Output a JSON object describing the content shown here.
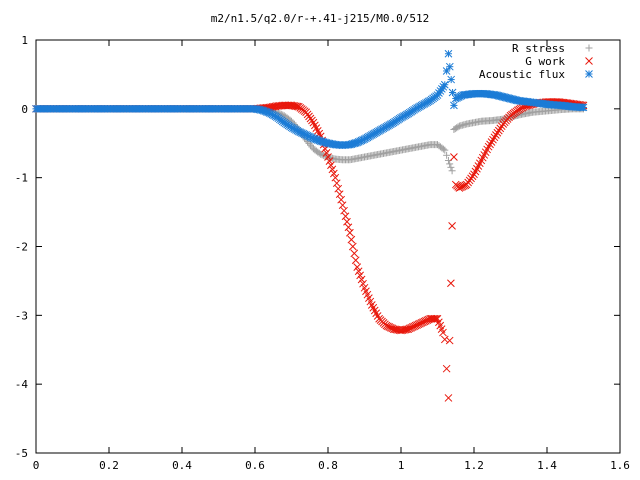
{
  "chart_data": {
    "type": "scatter",
    "title": "m2/n1.5/q2.0/r-+.41-j215/M0.0/512",
    "xlim": [
      0,
      1.6
    ],
    "ylim": [
      -5,
      1
    ],
    "xticks": [
      0,
      0.2,
      0.4,
      0.6,
      0.8,
      1,
      1.2,
      1.4,
      1.6
    ],
    "yticks": [
      -5,
      -4,
      -3,
      -2,
      -1,
      0,
      1
    ],
    "xtick_labels": [
      "0",
      "0.2",
      "0.4",
      "0.6",
      "0.8",
      "1",
      "1.2",
      "1.4",
      "1.6"
    ],
    "ytick_labels": [
      "-5",
      "-4",
      "-3",
      "-2",
      "-1",
      "0",
      "1"
    ],
    "legend_position": "top-right",
    "series": [
      {
        "name": "R stress",
        "marker": "plus",
        "color": "#a0a0a0",
        "points": [
          [
            0.0,
            0.0
          ],
          [
            0.1,
            0.0
          ],
          [
            0.2,
            0.0
          ],
          [
            0.3,
            0.0
          ],
          [
            0.4,
            0.0
          ],
          [
            0.5,
            0.0
          ],
          [
            0.6,
            0.0
          ],
          [
            0.62,
            0.0
          ],
          [
            0.64,
            -0.02
          ],
          [
            0.66,
            -0.05
          ],
          [
            0.68,
            -0.1
          ],
          [
            0.7,
            -0.18
          ],
          [
            0.72,
            -0.3
          ],
          [
            0.74,
            -0.45
          ],
          [
            0.76,
            -0.58
          ],
          [
            0.78,
            -0.66
          ],
          [
            0.8,
            -0.7
          ],
          [
            0.82,
            -0.73
          ],
          [
            0.84,
            -0.74
          ],
          [
            0.86,
            -0.74
          ],
          [
            0.88,
            -0.72
          ],
          [
            0.9,
            -0.7
          ],
          [
            0.92,
            -0.68
          ],
          [
            0.94,
            -0.66
          ],
          [
            0.96,
            -0.64
          ],
          [
            0.98,
            -0.62
          ],
          [
            1.0,
            -0.6
          ],
          [
            1.02,
            -0.58
          ],
          [
            1.04,
            -0.56
          ],
          [
            1.06,
            -0.54
          ],
          [
            1.08,
            -0.52
          ],
          [
            1.1,
            -0.52
          ],
          [
            1.12,
            -0.6
          ],
          [
            1.13,
            -0.75
          ],
          [
            1.14,
            -0.9
          ],
          [
            1.145,
            -0.3
          ],
          [
            1.16,
            -0.25
          ],
          [
            1.18,
            -0.22
          ],
          [
            1.2,
            -0.2
          ],
          [
            1.22,
            -0.18
          ],
          [
            1.25,
            -0.17
          ],
          [
            1.28,
            -0.15
          ],
          [
            1.3,
            -0.12
          ],
          [
            1.33,
            -0.08
          ],
          [
            1.36,
            -0.05
          ],
          [
            1.4,
            -0.03
          ],
          [
            1.44,
            -0.01
          ],
          [
            1.47,
            0.0
          ],
          [
            1.5,
            0.0
          ]
        ]
      },
      {
        "name": "G work",
        "marker": "cross",
        "color": "#e8170b",
        "points": [
          [
            0.0,
            0.0
          ],
          [
            0.1,
            0.0
          ],
          [
            0.2,
            0.0
          ],
          [
            0.3,
            0.0
          ],
          [
            0.4,
            0.0
          ],
          [
            0.5,
            0.0
          ],
          [
            0.6,
            0.0
          ],
          [
            0.62,
            0.01
          ],
          [
            0.64,
            0.02
          ],
          [
            0.66,
            0.04
          ],
          [
            0.68,
            0.05
          ],
          [
            0.7,
            0.05
          ],
          [
            0.72,
            0.03
          ],
          [
            0.74,
            -0.05
          ],
          [
            0.76,
            -0.2
          ],
          [
            0.78,
            -0.4
          ],
          [
            0.8,
            -0.7
          ],
          [
            0.82,
            -1.0
          ],
          [
            0.84,
            -1.4
          ],
          [
            0.86,
            -1.8
          ],
          [
            0.88,
            -2.3
          ],
          [
            0.9,
            -2.6
          ],
          [
            0.92,
            -2.85
          ],
          [
            0.94,
            -3.05
          ],
          [
            0.96,
            -3.15
          ],
          [
            0.98,
            -3.2
          ],
          [
            1.0,
            -3.22
          ],
          [
            1.02,
            -3.2
          ],
          [
            1.04,
            -3.15
          ],
          [
            1.06,
            -3.1
          ],
          [
            1.08,
            -3.05
          ],
          [
            1.1,
            -3.05
          ],
          [
            1.115,
            -3.25
          ],
          [
            1.12,
            -3.35
          ],
          [
            1.13,
            -4.2
          ],
          [
            1.14,
            -1.7
          ],
          [
            1.145,
            -0.7
          ],
          [
            1.15,
            -1.1
          ],
          [
            1.16,
            -1.15
          ],
          [
            1.18,
            -1.1
          ],
          [
            1.2,
            -0.95
          ],
          [
            1.22,
            -0.75
          ],
          [
            1.24,
            -0.55
          ],
          [
            1.26,
            -0.38
          ],
          [
            1.28,
            -0.22
          ],
          [
            1.3,
            -0.1
          ],
          [
            1.32,
            -0.02
          ],
          [
            1.34,
            0.04
          ],
          [
            1.37,
            0.08
          ],
          [
            1.4,
            0.1
          ],
          [
            1.43,
            0.1
          ],
          [
            1.46,
            0.08
          ],
          [
            1.5,
            0.05
          ]
        ]
      },
      {
        "name": "Acoustic flux",
        "marker": "star",
        "color": "#1c7cd6",
        "points": [
          [
            0.0,
            0.0
          ],
          [
            0.1,
            0.0
          ],
          [
            0.2,
            0.0
          ],
          [
            0.3,
            0.0
          ],
          [
            0.4,
            0.0
          ],
          [
            0.5,
            0.0
          ],
          [
            0.6,
            0.0
          ],
          [
            0.62,
            -0.02
          ],
          [
            0.64,
            -0.06
          ],
          [
            0.66,
            -0.12
          ],
          [
            0.68,
            -0.2
          ],
          [
            0.7,
            -0.27
          ],
          [
            0.72,
            -0.33
          ],
          [
            0.74,
            -0.38
          ],
          [
            0.76,
            -0.43
          ],
          [
            0.78,
            -0.47
          ],
          [
            0.8,
            -0.5
          ],
          [
            0.82,
            -0.52
          ],
          [
            0.84,
            -0.53
          ],
          [
            0.86,
            -0.52
          ],
          [
            0.88,
            -0.49
          ],
          [
            0.9,
            -0.44
          ],
          [
            0.92,
            -0.38
          ],
          [
            0.94,
            -0.32
          ],
          [
            0.96,
            -0.26
          ],
          [
            0.98,
            -0.2
          ],
          [
            1.0,
            -0.13
          ],
          [
            1.02,
            -0.07
          ],
          [
            1.04,
            0.0
          ],
          [
            1.06,
            0.06
          ],
          [
            1.08,
            0.12
          ],
          [
            1.1,
            0.2
          ],
          [
            1.12,
            0.35
          ],
          [
            1.125,
            0.55
          ],
          [
            1.13,
            0.8
          ],
          [
            1.145,
            0.05
          ],
          [
            1.15,
            0.15
          ],
          [
            1.17,
            0.2
          ],
          [
            1.2,
            0.22
          ],
          [
            1.23,
            0.22
          ],
          [
            1.26,
            0.2
          ],
          [
            1.29,
            0.16
          ],
          [
            1.32,
            0.12
          ],
          [
            1.35,
            0.1
          ],
          [
            1.38,
            0.08
          ],
          [
            1.41,
            0.06
          ],
          [
            1.44,
            0.05
          ],
          [
            1.47,
            0.03
          ],
          [
            1.5,
            0.02
          ]
        ]
      }
    ]
  }
}
